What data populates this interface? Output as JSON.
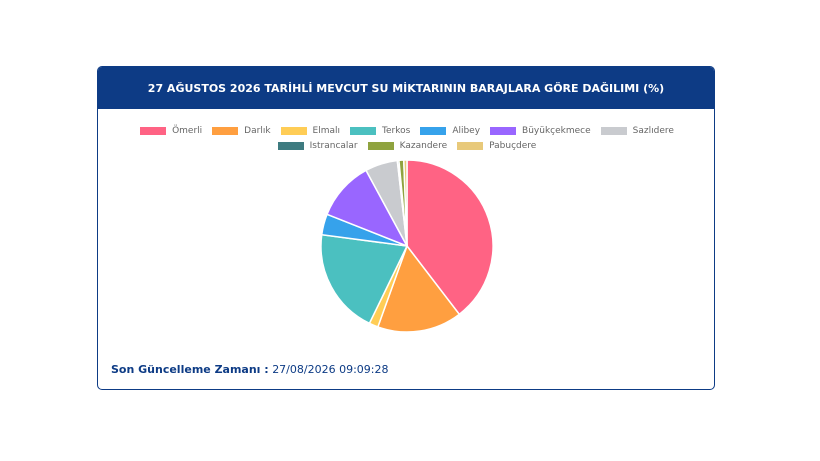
{
  "chart_data": {
    "type": "pie",
    "title": "27 AĞUSTOS 2026 TARİHLİ MEVCUT SU MİKTARININ BARAJLARA GÖRE DAĞILIMI (%)",
    "categories": [
      "Ömerli",
      "Darlık",
      "Elmalı",
      "Terkos",
      "Alibey",
      "Büyükçekmece",
      "Sazlıdere",
      "Istrancalar",
      "Kazandere",
      "Pabuçdere"
    ],
    "values": [
      39.6,
      15.9,
      1.7,
      19.9,
      3.9,
      11.1,
      6.1,
      0.3,
      0.9,
      0.6
    ],
    "colors": [
      "#ff6384",
      "#ff9f40",
      "#ffcd56",
      "#4bc0c0",
      "#36a2eb",
      "#9966ff",
      "#c9cbcf",
      "#3e7b80",
      "#8fa33f",
      "#e8c97a"
    ]
  },
  "footer": {
    "label": "Son Güncelleme Zamanı :",
    "value": "27/08/2026 09:09:28"
  }
}
